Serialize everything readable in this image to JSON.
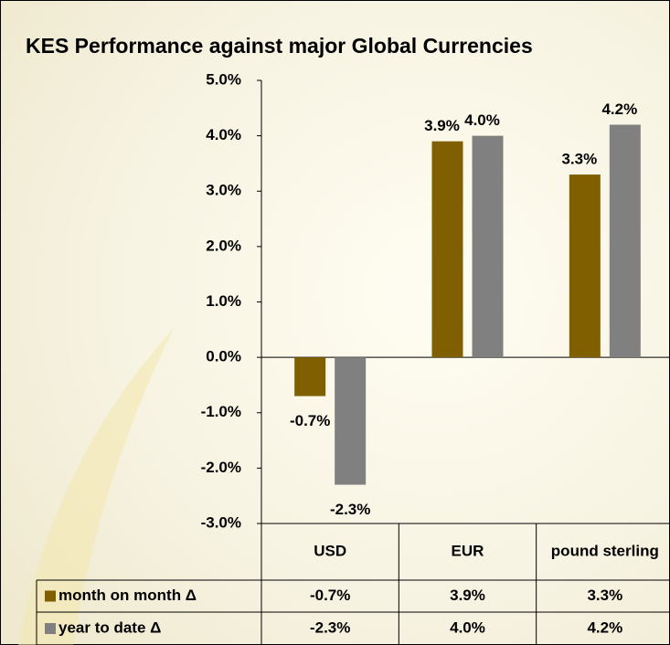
{
  "chart_data": {
    "type": "bar",
    "title": "KES Performance against major Global Currencies",
    "categories": [
      "USD",
      "EUR",
      "pound sterling"
    ],
    "series": [
      {
        "name": "month on month Δ",
        "color": "#7f5f00",
        "values": [
          -0.7,
          3.9,
          3.3
        ],
        "value_labels": [
          "-0.7%",
          "3.9%",
          "3.3%"
        ]
      },
      {
        "name": "year to date Δ",
        "color": "#808080",
        "values": [
          -2.3,
          4.0,
          4.2
        ],
        "value_labels": [
          "-2.3%",
          "4.0%",
          "4.2%"
        ]
      }
    ],
    "ylim": [
      -3,
      5
    ],
    "yticks": [
      {
        "value": -3,
        "label": "-3.0%"
      },
      {
        "value": -2,
        "label": "-2.0%"
      },
      {
        "value": -1,
        "label": "-1.0%"
      },
      {
        "value": 0,
        "label": "0.0%"
      },
      {
        "value": 1,
        "label": "1.0%"
      },
      {
        "value": 2,
        "label": "2.0%"
      },
      {
        "value": 3,
        "label": "3.0%"
      },
      {
        "value": 4,
        "label": "4.0%"
      },
      {
        "value": 5,
        "label": "5.0%"
      }
    ],
    "data_table": true
  }
}
